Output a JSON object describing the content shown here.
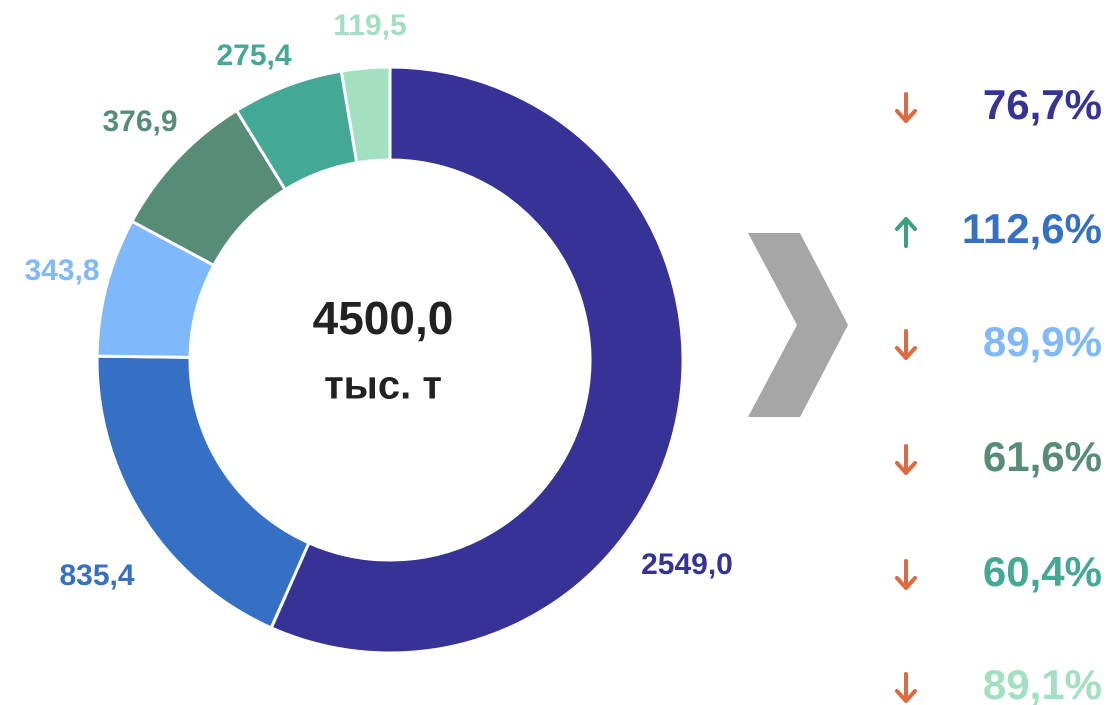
{
  "chart_data": {
    "type": "pie",
    "donut": true,
    "values": [
      2549.0,
      835.4,
      343.8,
      376.9,
      275.4,
      119.5
    ],
    "value_labels": [
      "2549,0",
      "835,4",
      "343,8",
      "376,9",
      "275,4",
      "119,5"
    ],
    "colors": [
      "#373296",
      "#3670c4",
      "#7fb8fb",
      "#578c77",
      "#44a994",
      "#a3dfc1"
    ],
    "center_value": "4500,0",
    "center_unit": "тыс. т"
  },
  "changes": [
    {
      "label": "76,7%",
      "direction": "down"
    },
    {
      "label": "112,6%",
      "direction": "up"
    },
    {
      "label": "89,9%",
      "direction": "down"
    },
    {
      "label": "61,6%",
      "direction": "down"
    },
    {
      "label": "60,4%",
      "direction": "down"
    },
    {
      "label": "89,1%",
      "direction": "down"
    }
  ],
  "arrow_colors": {
    "up": "#3aa080",
    "down": "#e06a40"
  }
}
